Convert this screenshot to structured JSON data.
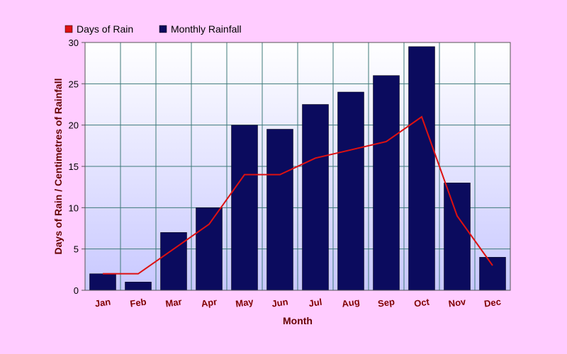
{
  "chart_data": {
    "type": "bar",
    "categories": [
      "Jan",
      "Feb",
      "Mar",
      "Apr",
      "May",
      "Jun",
      "Jul",
      "Aug",
      "Sep",
      "Oct",
      "Nov",
      "Dec"
    ],
    "series": [
      {
        "name": "Monthly Rainfall",
        "type": "bar",
        "color": "#0b0b5e",
        "values": [
          2,
          1,
          7,
          10,
          20,
          19.5,
          22.5,
          24,
          26,
          29.5,
          13,
          4
        ]
      },
      {
        "name": "Days of Rain",
        "type": "line",
        "color": "#dd1111",
        "values": [
          2,
          2,
          5,
          8,
          14,
          14,
          16,
          17,
          18,
          21,
          9,
          3
        ]
      }
    ],
    "legend": [
      "Days of Rain",
      "Monthly Rainfall"
    ],
    "legend_position": "top-left",
    "xlabel": "Month",
    "ylabel": "Days of Rain / Centimetres of Rainfall",
    "ylim": [
      0,
      30
    ],
    "yticks": [
      0,
      5,
      10,
      15,
      20,
      25,
      30
    ],
    "grid": true,
    "plot_background": [
      "#ffffff",
      "#c8c8ff"
    ]
  }
}
